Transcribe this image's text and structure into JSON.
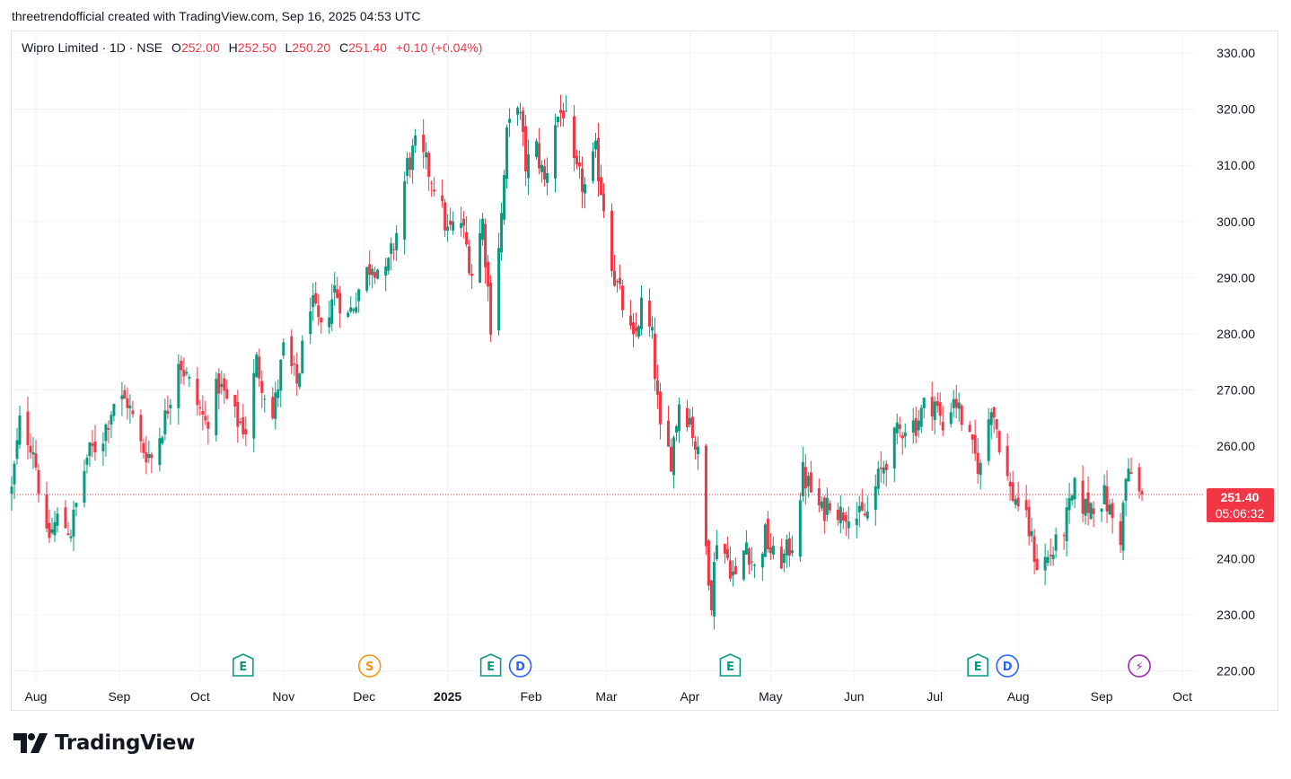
{
  "header": {
    "attribution": "threetrendofficial created with TradingView.com, Sep 16, 2025 04:53 UTC"
  },
  "legend": {
    "symbol": "Wipro Limited · 1D · NSE",
    "open_label": "O",
    "open": "252.00",
    "high_label": "H",
    "high": "252.50",
    "low_label": "L",
    "low": "250.20",
    "close_label": "C",
    "close": "251.40",
    "change": "+0.10 (+0.04%)"
  },
  "price_tag": {
    "price": "251.40",
    "countdown": "05:06:32"
  },
  "brand": {
    "name": "TradingView"
  },
  "colors": {
    "up": "#089981",
    "down": "#f23645",
    "grid": "#f0f3fa",
    "tag": "#f23645",
    "dividend": "#2962ff",
    "split": "#f7931a",
    "event": "#9c27b0"
  },
  "events": [
    {
      "type": "E",
      "date": "2024-10-17"
    },
    {
      "type": "S",
      "date": "2024-12-03"
    },
    {
      "type": "E",
      "date": "2025-01-17"
    },
    {
      "type": "D",
      "date": "2025-01-28"
    },
    {
      "type": "E",
      "date": "2025-04-16"
    },
    {
      "type": "E",
      "date": "2025-07-17"
    },
    {
      "type": "D",
      "date": "2025-07-28"
    },
    {
      "type": "⚡",
      "date": "2025-09-15"
    }
  ],
  "chart_data": {
    "type": "candlestick",
    "symbol": "Wipro Limited",
    "interval": "1D",
    "exchange": "NSE",
    "y_axis": {
      "ticks": [
        "220.00",
        "230.00",
        "240.00",
        "250.00",
        "260.00",
        "270.00",
        "280.00",
        "290.00",
        "300.00",
        "310.00",
        "320.00",
        "330.00"
      ],
      "range": [
        218,
        334
      ]
    },
    "x_axis": {
      "range": [
        "2024-07-23",
        "2025-10-06"
      ],
      "ticks": [
        {
          "label": "Aug",
          "date": "2024-08-01"
        },
        {
          "label": "Sep",
          "date": "2024-09-01"
        },
        {
          "label": "Oct",
          "date": "2024-10-01"
        },
        {
          "label": "Nov",
          "date": "2024-11-01"
        },
        {
          "label": "Dec",
          "date": "2024-12-01"
        },
        {
          "label": "2025",
          "date": "2025-01-01",
          "bold": true
        },
        {
          "label": "Feb",
          "date": "2025-02-01"
        },
        {
          "label": "Mar",
          "date": "2025-03-01"
        },
        {
          "label": "Apr",
          "date": "2025-04-01"
        },
        {
          "label": "May",
          "date": "2025-05-01"
        },
        {
          "label": "Jun",
          "date": "2025-06-01"
        },
        {
          "label": "Jul",
          "date": "2025-07-01"
        },
        {
          "label": "Aug",
          "date": "2025-08-01"
        },
        {
          "label": "Sep",
          "date": "2025-09-01"
        },
        {
          "label": "Oct",
          "date": "2025-10-01"
        }
      ]
    },
    "current_price": 251.4,
    "close_path": [
      [
        "2024-07-23",
        252
      ],
      [
        "2024-07-26",
        264
      ],
      [
        "2024-07-31",
        260
      ],
      [
        "2024-08-05",
        243
      ],
      [
        "2024-08-09",
        247
      ],
      [
        "2024-08-14",
        245
      ],
      [
        "2024-08-20",
        258
      ],
      [
        "2024-08-26",
        262
      ],
      [
        "2024-08-30",
        268
      ],
      [
        "2024-09-04",
        268
      ],
      [
        "2024-09-09",
        260
      ],
      [
        "2024-09-13",
        258
      ],
      [
        "2024-09-18",
        265
      ],
      [
        "2024-09-23",
        276
      ],
      [
        "2024-09-27",
        271
      ],
      [
        "2024-10-03",
        264
      ],
      [
        "2024-10-08",
        271
      ],
      [
        "2024-10-14",
        265
      ],
      [
        "2024-10-18",
        263
      ],
      [
        "2024-10-22",
        275
      ],
      [
        "2024-10-28",
        265
      ],
      [
        "2024-11-01",
        277
      ],
      [
        "2024-11-06",
        271
      ],
      [
        "2024-11-11",
        286
      ],
      [
        "2024-11-15",
        280
      ],
      [
        "2024-11-20",
        288
      ],
      [
        "2024-11-25",
        283
      ],
      [
        "2024-11-29",
        288
      ],
      [
        "2024-12-04",
        293
      ],
      [
        "2024-12-09",
        290
      ],
      [
        "2024-12-13",
        298
      ],
      [
        "2024-12-17",
        310
      ],
      [
        "2024-12-20",
        313
      ],
      [
        "2024-12-24",
        310
      ],
      [
        "2024-12-27",
        307
      ],
      [
        "2025-01-01",
        298
      ],
      [
        "2025-01-06",
        300
      ],
      [
        "2025-01-10",
        291
      ],
      [
        "2025-01-14",
        300
      ],
      [
        "2025-01-17",
        282
      ],
      [
        "2025-01-21",
        301
      ],
      [
        "2025-01-23",
        315
      ],
      [
        "2025-01-27",
        322
      ],
      [
        "2025-01-30",
        310
      ],
      [
        "2025-02-03",
        313
      ],
      [
        "2025-02-06",
        307
      ],
      [
        "2025-02-10",
        318
      ],
      [
        "2025-02-13",
        320
      ],
      [
        "2025-02-17",
        309
      ],
      [
        "2025-02-21",
        306
      ],
      [
        "2025-02-25",
        312
      ],
      [
        "2025-02-28",
        303
      ],
      [
        "2025-03-04",
        290
      ],
      [
        "2025-03-07",
        285
      ],
      [
        "2025-03-11",
        278
      ],
      [
        "2025-03-14",
        285
      ],
      [
        "2025-03-18",
        279
      ],
      [
        "2025-03-21",
        262
      ],
      [
        "2025-03-25",
        258
      ],
      [
        "2025-03-28",
        268
      ],
      [
        "2025-04-01",
        265
      ],
      [
        "2025-04-04",
        258
      ],
      [
        "2025-04-07",
        242
      ],
      [
        "2025-04-09",
        233
      ],
      [
        "2025-04-11",
        244
      ],
      [
        "2025-04-15",
        240
      ],
      [
        "2025-04-18",
        236
      ],
      [
        "2025-04-22",
        243
      ],
      [
        "2025-04-25",
        238
      ],
      [
        "2025-04-29",
        244
      ],
      [
        "2025-05-02",
        240
      ],
      [
        "2025-05-06",
        240
      ],
      [
        "2025-05-09",
        243
      ],
      [
        "2025-05-13",
        255
      ],
      [
        "2025-05-16",
        252
      ],
      [
        "2025-05-20",
        248
      ],
      [
        "2025-05-23",
        251
      ],
      [
        "2025-05-27",
        248
      ],
      [
        "2025-05-30",
        249
      ],
      [
        "2025-06-03",
        247
      ],
      [
        "2025-06-06",
        248
      ],
      [
        "2025-06-10",
        254
      ],
      [
        "2025-06-13",
        258
      ],
      [
        "2025-06-17",
        262
      ],
      [
        "2025-06-20",
        264
      ],
      [
        "2025-06-24",
        264
      ],
      [
        "2025-06-27",
        267
      ],
      [
        "2025-07-01",
        268
      ],
      [
        "2025-07-04",
        263
      ],
      [
        "2025-07-08",
        269
      ],
      [
        "2025-07-11",
        265
      ],
      [
        "2025-07-15",
        259
      ],
      [
        "2025-07-18",
        256
      ],
      [
        "2025-07-22",
        268
      ],
      [
        "2025-07-25",
        261
      ],
      [
        "2025-07-29",
        252
      ],
      [
        "2025-08-01",
        250
      ],
      [
        "2025-08-05",
        245
      ],
      [
        "2025-08-08",
        239
      ],
      [
        "2025-08-12",
        240
      ],
      [
        "2025-08-15",
        242
      ],
      [
        "2025-08-19",
        247
      ],
      [
        "2025-08-22",
        252
      ],
      [
        "2025-08-26",
        249
      ],
      [
        "2025-08-29",
        250
      ],
      [
        "2025-09-02",
        251
      ],
      [
        "2025-09-05",
        247
      ],
      [
        "2025-09-08",
        244
      ],
      [
        "2025-09-10",
        254
      ],
      [
        "2025-09-12",
        255
      ],
      [
        "2025-09-15",
        251.3
      ],
      [
        "2025-09-16",
        251.4
      ]
    ],
    "last_candle": {
      "date": "2025-09-16",
      "open": 252.0,
      "high": 252.5,
      "low": 250.2,
      "close": 251.4
    }
  }
}
